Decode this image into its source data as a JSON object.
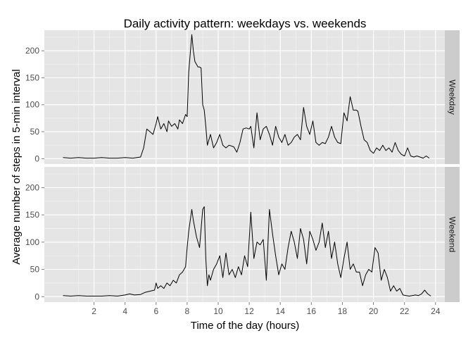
{
  "chart_data": {
    "type": "line",
    "title": "Daily activity pattern: weekdays vs. weekends",
    "xlabel": "Time of the day (hours)",
    "ylabel": "Average number of steps in 5-min interval",
    "xlim": [
      -1.2,
      24.6
    ],
    "ylim": [
      -10,
      238
    ],
    "x_ticks": [
      2,
      4,
      6,
      8,
      10,
      12,
      14,
      16,
      18,
      20,
      22,
      24
    ],
    "y_ticks": [
      0,
      50,
      100,
      150,
      200
    ],
    "grid": true,
    "facet": "rows",
    "line_color": "#000000",
    "panel_background": "#e5e5e5",
    "strip_background": "#cccccc",
    "series": [
      {
        "name": "Weekday",
        "x": [
          0.0,
          0.5,
          1.0,
          1.5,
          2.0,
          2.5,
          3.0,
          3.5,
          4.0,
          4.5,
          5.0,
          5.2,
          5.4,
          5.6,
          5.8,
          6.0,
          6.1,
          6.3,
          6.5,
          6.7,
          6.8,
          7.0,
          7.2,
          7.4,
          7.5,
          7.7,
          7.9,
          8.0,
          8.1,
          8.2,
          8.3,
          8.4,
          8.5,
          8.6,
          8.7,
          8.8,
          8.9,
          9.0,
          9.1,
          9.2,
          9.3,
          9.5,
          9.7,
          9.9,
          10.1,
          10.3,
          10.5,
          10.7,
          11.0,
          11.2,
          11.4,
          11.6,
          11.8,
          12.0,
          12.1,
          12.3,
          12.5,
          12.7,
          12.9,
          13.1,
          13.3,
          13.5,
          13.7,
          13.9,
          14.1,
          14.3,
          14.5,
          14.7,
          14.9,
          15.1,
          15.3,
          15.5,
          15.7,
          15.9,
          16.1,
          16.3,
          16.5,
          16.7,
          16.9,
          17.1,
          17.3,
          17.5,
          17.7,
          17.9,
          18.1,
          18.3,
          18.5,
          18.7,
          18.9,
          19.0,
          19.2,
          19.4,
          19.6,
          19.8,
          20.0,
          20.2,
          20.4,
          20.6,
          20.8,
          21.0,
          21.2,
          21.4,
          21.6,
          21.8,
          22.0,
          22.2,
          22.4,
          22.6,
          22.8,
          23.0,
          23.2,
          23.4,
          23.6
        ],
        "values": [
          2,
          1,
          2,
          1,
          1,
          2,
          1,
          1,
          2,
          1,
          3,
          20,
          55,
          50,
          45,
          65,
          78,
          55,
          65,
          50,
          70,
          60,
          65,
          55,
          72,
          65,
          82,
          78,
          160,
          195,
          230,
          200,
          180,
          175,
          170,
          170,
          168,
          100,
          90,
          60,
          25,
          45,
          20,
          30,
          45,
          25,
          20,
          25,
          22,
          12,
          30,
          55,
          57,
          55,
          60,
          20,
          85,
          35,
          55,
          60,
          45,
          25,
          60,
          40,
          30,
          45,
          25,
          30,
          40,
          45,
          35,
          95,
          60,
          45,
          70,
          30,
          25,
          30,
          28,
          40,
          60,
          40,
          30,
          28,
          85,
          70,
          115,
          90,
          90,
          88,
          60,
          35,
          30,
          15,
          10,
          20,
          15,
          25,
          15,
          20,
          12,
          30,
          15,
          8,
          5,
          20,
          5,
          3,
          5,
          3,
          1,
          5,
          1
        ]
      },
      {
        "name": "Weekend",
        "x": [
          0.0,
          0.5,
          1.0,
          1.5,
          2.0,
          2.5,
          3.0,
          3.5,
          4.0,
          4.3,
          4.6,
          5.0,
          5.3,
          5.6,
          5.9,
          6.0,
          6.1,
          6.3,
          6.5,
          6.7,
          6.9,
          7.1,
          7.3,
          7.5,
          7.7,
          7.9,
          8.0,
          8.1,
          8.3,
          8.4,
          8.5,
          8.6,
          8.8,
          9.0,
          9.1,
          9.2,
          9.3,
          9.4,
          9.5,
          9.7,
          9.9,
          10.1,
          10.3,
          10.5,
          10.7,
          10.9,
          11.1,
          11.3,
          11.5,
          11.7,
          11.9,
          12.1,
          12.3,
          12.5,
          12.7,
          12.9,
          13.1,
          13.3,
          13.5,
          13.7,
          13.9,
          14.1,
          14.3,
          14.5,
          14.7,
          14.9,
          15.1,
          15.3,
          15.5,
          15.7,
          15.9,
          16.1,
          16.3,
          16.5,
          16.7,
          16.9,
          17.1,
          17.3,
          17.5,
          17.7,
          17.9,
          18.1,
          18.3,
          18.5,
          18.7,
          18.9,
          19.1,
          19.3,
          19.5,
          19.7,
          19.9,
          20.1,
          20.3,
          20.5,
          20.7,
          20.9,
          21.1,
          21.3,
          21.5,
          21.7,
          21.9,
          22.1,
          22.3,
          22.5,
          22.7,
          22.9,
          23.1,
          23.3,
          23.5,
          23.7
        ],
        "values": [
          2,
          1,
          2,
          1,
          1,
          1,
          2,
          1,
          3,
          5,
          3,
          4,
          8,
          10,
          12,
          25,
          15,
          20,
          15,
          25,
          20,
          30,
          25,
          40,
          45,
          55,
          90,
          120,
          160,
          140,
          125,
          110,
          90,
          160,
          165,
          70,
          20,
          40,
          30,
          50,
          60,
          75,
          35,
          80,
          40,
          50,
          35,
          55,
          40,
          75,
          55,
          155,
          70,
          100,
          95,
          105,
          30,
          160,
          115,
          75,
          40,
          60,
          50,
          90,
          120,
          100,
          70,
          125,
          105,
          60,
          120,
          105,
          85,
          100,
          135,
          90,
          120,
          70,
          100,
          60,
          35,
          70,
          100,
          50,
          60,
          45,
          45,
          20,
          40,
          50,
          45,
          90,
          80,
          30,
          50,
          35,
          10,
          20,
          10,
          15,
          3,
          2,
          1,
          2,
          3,
          2,
          5,
          12,
          5,
          1
        ]
      }
    ]
  }
}
